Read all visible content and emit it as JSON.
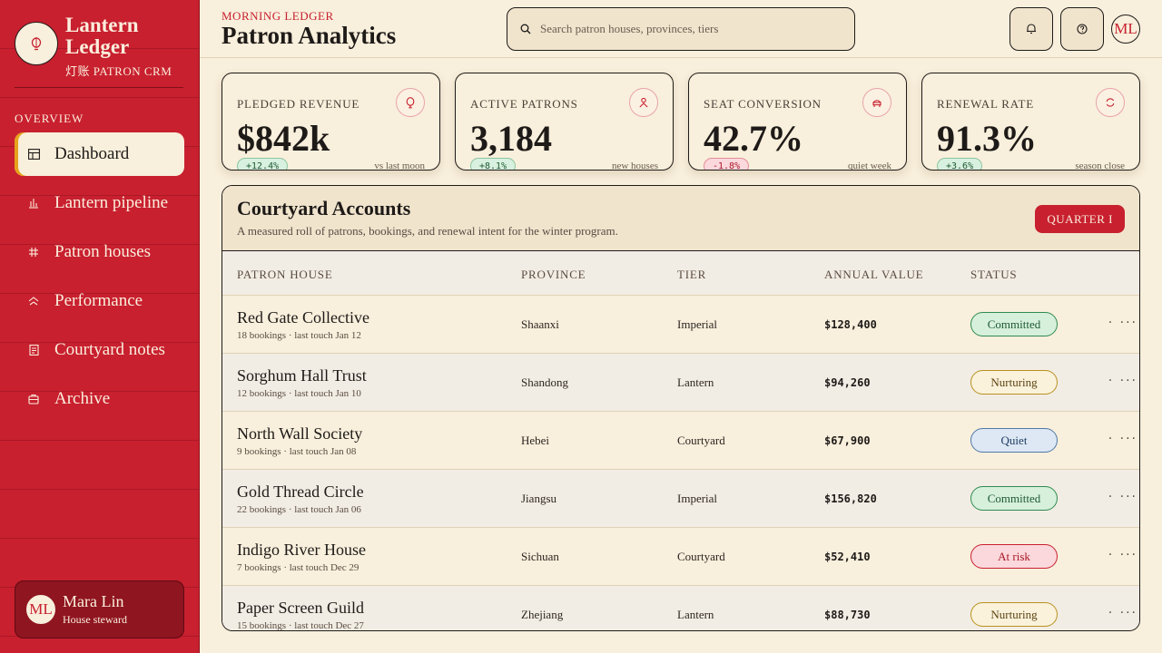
{
  "brand": {
    "title_line1": "Lantern",
    "title_line2": "Ledger",
    "subtitle": "灯账 PATRON CRM",
    "logo_icon": "lantern-icon"
  },
  "nav": {
    "section_label": "OVERVIEW",
    "items": [
      {
        "label": "Dashboard",
        "icon": "grid-icon",
        "active": true
      },
      {
        "label": "Lantern pipeline",
        "icon": "bar-chart-icon"
      },
      {
        "label": "Patron houses",
        "icon": "lattice-icon"
      },
      {
        "label": "Performance",
        "icon": "trend-icon"
      },
      {
        "label": "Courtyard notes",
        "icon": "notes-icon"
      },
      {
        "label": "Archive",
        "icon": "archive-icon"
      }
    ]
  },
  "user": {
    "initials": "ML",
    "name": "Mara Lin",
    "role": "House steward"
  },
  "header": {
    "eyebrow": "MORNING LEDGER",
    "title": "Patron Analytics",
    "search_placeholder": "Search patron houses, provinces, tiers",
    "avatar_initials": "ML"
  },
  "kpis": [
    {
      "label": "PLEDGED REVENUE",
      "value": "$842k",
      "delta": "+12.4%",
      "trend": "up",
      "note": "vs last moon",
      "icon": "lantern-icon"
    },
    {
      "label": "ACTIVE PATRONS",
      "value": "3,184",
      "delta": "+8.1%",
      "trend": "up",
      "note": "new houses",
      "icon": "person-icon"
    },
    {
      "label": "SEAT CONVERSION",
      "value": "42.7%",
      "delta": "-1.8%",
      "trend": "down",
      "note": "quiet week",
      "icon": "seat-icon"
    },
    {
      "label": "RENEWAL RATE",
      "value": "91.3%",
      "delta": "+3.6%",
      "trend": "up",
      "note": "season close",
      "icon": "renew-icon"
    }
  ],
  "panel": {
    "title": "Courtyard Accounts",
    "description": "A measured roll of patrons, bookings, and renewal intent for the winter program.",
    "quarter_label": "QUARTER I",
    "columns": [
      "PATRON HOUSE",
      "PROVINCE",
      "TIER",
      "ANNUAL VALUE",
      "STATUS"
    ],
    "rows": [
      {
        "name": "Red Gate Collective",
        "meta": "18 bookings · last touch Jan 12",
        "province": "Shaanxi",
        "tier": "Imperial",
        "value": "$128,400",
        "status": "Committed",
        "status_kind": "committed"
      },
      {
        "name": "Sorghum Hall Trust",
        "meta": "12 bookings · last touch Jan 10",
        "province": "Shandong",
        "tier": "Lantern",
        "value": "$94,260",
        "status": "Nurturing",
        "status_kind": "nurturing"
      },
      {
        "name": "North Wall Society",
        "meta": "9 bookings · last touch Jan 08",
        "province": "Hebei",
        "tier": "Courtyard",
        "value": "$67,900",
        "status": "Quiet",
        "status_kind": "quiet"
      },
      {
        "name": "Gold Thread Circle",
        "meta": "22 bookings · last touch Jan 06",
        "province": "Jiangsu",
        "tier": "Imperial",
        "value": "$156,820",
        "status": "Committed",
        "status_kind": "committed"
      },
      {
        "name": "Indigo River House",
        "meta": "7 bookings · last touch Dec 29",
        "province": "Sichuan",
        "tier": "Courtyard",
        "value": "$52,410",
        "status": "At risk",
        "status_kind": "risk"
      },
      {
        "name": "Paper Screen Guild",
        "meta": "15 bookings · last touch Dec 27",
        "province": "Zhejiang",
        "tier": "Lantern",
        "value": "$88,730",
        "status": "Nurturing",
        "status_kind": "nurturing"
      }
    ]
  },
  "colors": {
    "sidebar": "#c8202f",
    "paper": "#f8efdc",
    "accent_gold": "#e6a21a",
    "ink": "#1e1a18"
  }
}
